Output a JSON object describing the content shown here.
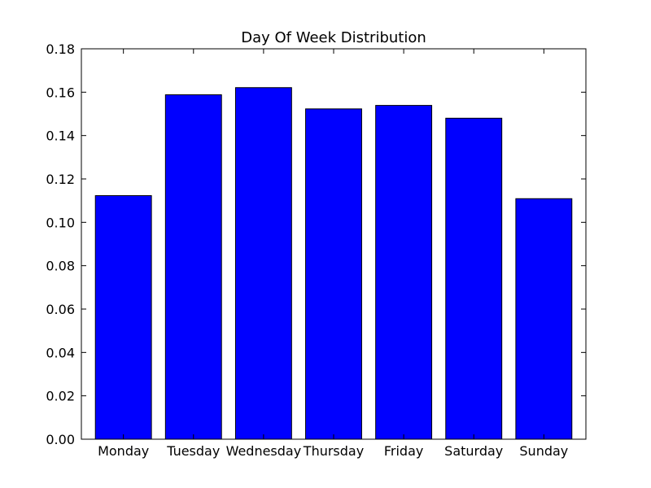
{
  "chart_data": {
    "type": "bar",
    "title": "Day Of Week Distribution",
    "categories": [
      "Monday",
      "Tuesday",
      "Wednesday",
      "Thursday",
      "Friday",
      "Saturday",
      "Sunday"
    ],
    "values": [
      0.1123,
      0.1588,
      0.1621,
      0.1523,
      0.1539,
      0.148,
      0.1109
    ],
    "ylim": [
      0,
      0.18
    ],
    "ytick_labels": [
      "0.00",
      "0.02",
      "0.04",
      "0.06",
      "0.08",
      "0.10",
      "0.12",
      "0.14",
      "0.16",
      "0.18"
    ],
    "xlabel": "",
    "ylabel": "",
    "grid": false,
    "legend": "none",
    "bar_color": "#0000ff",
    "edge_color": "#000000"
  }
}
